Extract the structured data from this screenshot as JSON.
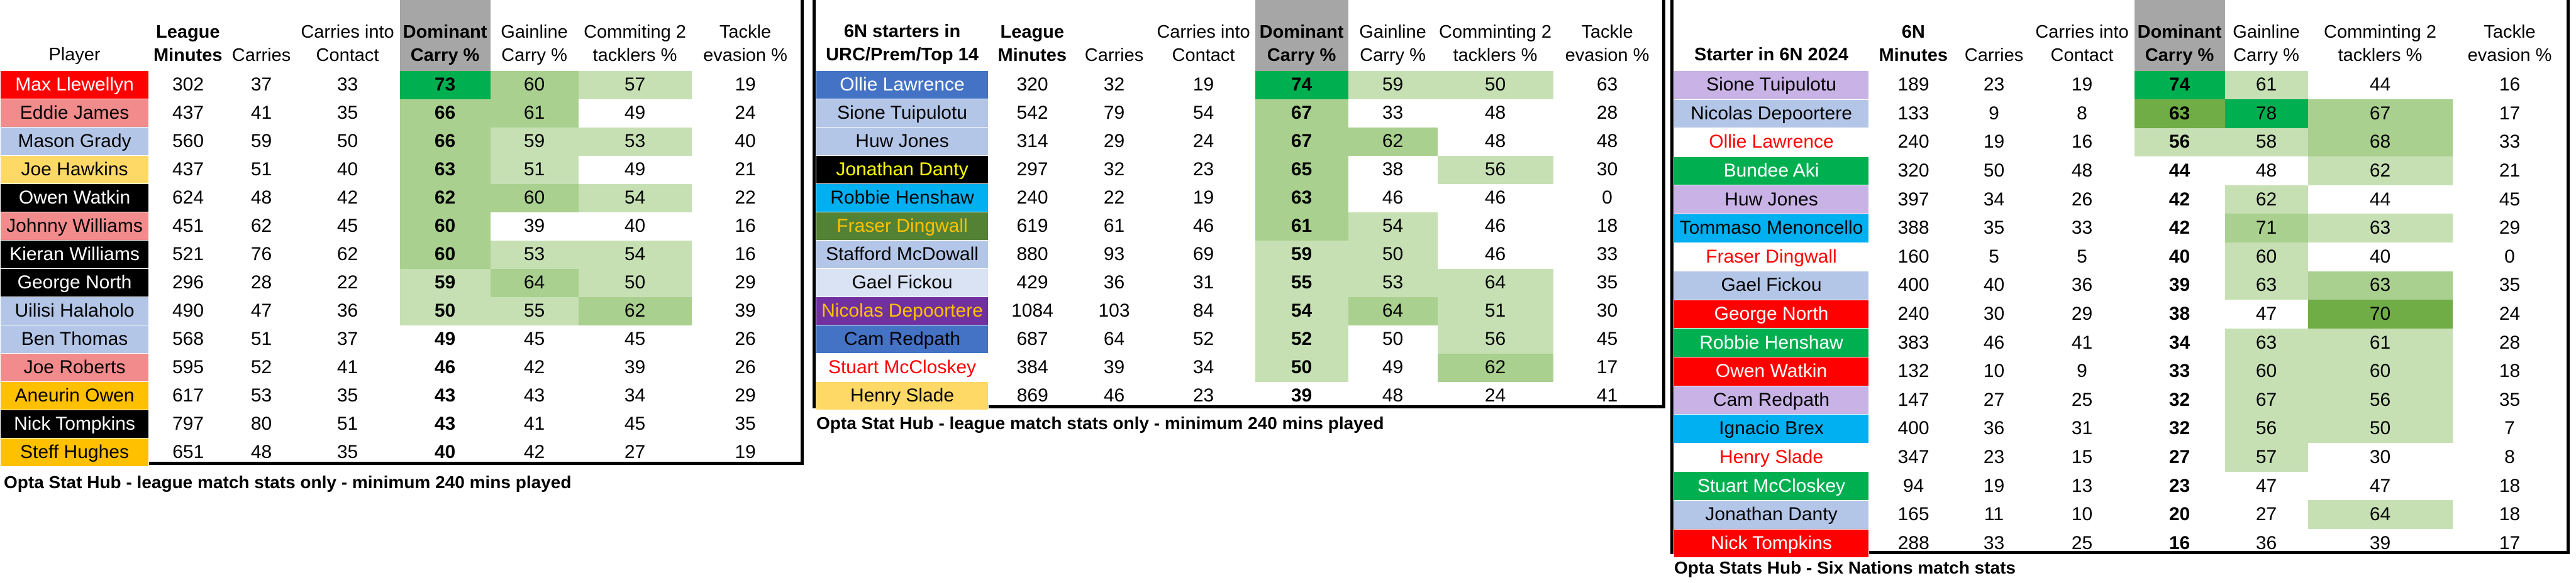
{
  "colors": {
    "light_green": "#c6e0b4",
    "mid_green": "#a9d08e",
    "strong_green": "#70ad47",
    "bright_green": "#00b050",
    "header_grey": "#a6a6a6"
  },
  "table1": {
    "headers": [
      "Player",
      "League Minutes",
      "Carries",
      "Carries into Contact",
      "Dominant Carry %",
      "Gainline Carry %",
      "Commiting 2 tacklers %",
      "Tackle evasion %"
    ],
    "caption": "Opta Stat Hub - league match stats only - minimum 240 mins played",
    "rows": [
      {
        "name": "Max Llewellyn",
        "bg": "#ff0000",
        "fg": "#ffffff",
        "v": [
          "302",
          "37",
          "33",
          "73",
          "60",
          "57",
          "19"
        ],
        "s": [
          0,
          0,
          0,
          4,
          2,
          1,
          0
        ]
      },
      {
        "name": "Eddie James",
        "bg": "#f28b8b",
        "fg": "#000000",
        "v": [
          "437",
          "41",
          "35",
          "66",
          "61",
          "49",
          "24"
        ],
        "s": [
          0,
          0,
          0,
          2,
          2,
          0,
          0
        ]
      },
      {
        "name": "Mason Grady",
        "bg": "#b4c6e7",
        "fg": "#000000",
        "v": [
          "560",
          "59",
          "50",
          "66",
          "59",
          "53",
          "40"
        ],
        "s": [
          0,
          0,
          0,
          2,
          1,
          1,
          0
        ]
      },
      {
        "name": "Joe Hawkins",
        "bg": "#ffd966",
        "fg": "#000000",
        "v": [
          "437",
          "51",
          "40",
          "63",
          "51",
          "49",
          "21"
        ],
        "s": [
          0,
          0,
          0,
          2,
          1,
          0,
          0
        ]
      },
      {
        "name": "Owen Watkin",
        "bg": "#000000",
        "fg": "#ffffff",
        "v": [
          "624",
          "48",
          "42",
          "62",
          "60",
          "54",
          "22"
        ],
        "s": [
          0,
          0,
          0,
          2,
          2,
          1,
          0
        ]
      },
      {
        "name": "Johnny Williams",
        "bg": "#f28b8b",
        "fg": "#000000",
        "v": [
          "451",
          "62",
          "45",
          "60",
          "39",
          "40",
          "16"
        ],
        "s": [
          0,
          0,
          0,
          2,
          0,
          0,
          0
        ]
      },
      {
        "name": "Kieran Williams",
        "bg": "#000000",
        "fg": "#ffffff",
        "v": [
          "521",
          "76",
          "62",
          "60",
          "53",
          "54",
          "16"
        ],
        "s": [
          0,
          0,
          0,
          2,
          1,
          1,
          0
        ]
      },
      {
        "name": "George North",
        "bg": "#000000",
        "fg": "#ffffff",
        "v": [
          "296",
          "28",
          "22",
          "59",
          "64",
          "50",
          "29"
        ],
        "s": [
          0,
          0,
          0,
          1,
          2,
          1,
          0
        ]
      },
      {
        "name": "Uilisi Halaholo",
        "bg": "#b4c6e7",
        "fg": "#000000",
        "v": [
          "490",
          "47",
          "36",
          "50",
          "55",
          "62",
          "39"
        ],
        "s": [
          0,
          0,
          0,
          1,
          1,
          2,
          0
        ]
      },
      {
        "name": "Ben Thomas",
        "bg": "#b4c6e7",
        "fg": "#000000",
        "v": [
          "568",
          "51",
          "37",
          "49",
          "45",
          "45",
          "26"
        ],
        "s": [
          0,
          0,
          0,
          0,
          0,
          0,
          0
        ]
      },
      {
        "name": "Joe Roberts",
        "bg": "#f28b8b",
        "fg": "#000000",
        "v": [
          "595",
          "52",
          "41",
          "46",
          "42",
          "39",
          "26"
        ],
        "s": [
          0,
          0,
          0,
          0,
          0,
          0,
          0
        ]
      },
      {
        "name": "Aneurin Owen",
        "bg": "#ffc000",
        "fg": "#000000",
        "v": [
          "617",
          "53",
          "35",
          "43",
          "43",
          "34",
          "29"
        ],
        "s": [
          0,
          0,
          0,
          0,
          0,
          0,
          0
        ]
      },
      {
        "name": "Nick Tompkins",
        "bg": "#000000",
        "fg": "#ffffff",
        "v": [
          "797",
          "80",
          "51",
          "43",
          "41",
          "45",
          "35"
        ],
        "s": [
          0,
          0,
          0,
          0,
          0,
          0,
          0
        ]
      },
      {
        "name": "Steff Hughes",
        "bg": "#ffc000",
        "fg": "#000000",
        "v": [
          "651",
          "48",
          "35",
          "40",
          "42",
          "27",
          "19"
        ],
        "s": [
          0,
          0,
          0,
          0,
          0,
          0,
          0
        ]
      }
    ]
  },
  "table2": {
    "headers": [
      "6N starters in URC/Prem/Top 14",
      "League Minutes",
      "Carries",
      "Carries into Contact",
      "Dominant Carry %",
      "Gainline Carry %",
      "Comminting 2 tacklers %",
      "Tackle evasion %"
    ],
    "caption": "Opta Stat Hub - league match stats only - minimum 240 mins played",
    "rows": [
      {
        "name": "Ollie Lawrence",
        "bg": "#4472c4",
        "fg": "#ffffff",
        "v": [
          "320",
          "32",
          "19",
          "74",
          "59",
          "50",
          "63"
        ],
        "s": [
          0,
          0,
          0,
          4,
          1,
          1,
          0
        ]
      },
      {
        "name": "Sione Tuipulotu",
        "bg": "#b4c6e7",
        "fg": "#000000",
        "v": [
          "542",
          "79",
          "54",
          "67",
          "33",
          "48",
          "28"
        ],
        "s": [
          0,
          0,
          0,
          2,
          0,
          0,
          0
        ]
      },
      {
        "name": "Huw Jones",
        "bg": "#b4c6e7",
        "fg": "#000000",
        "v": [
          "314",
          "29",
          "24",
          "67",
          "62",
          "48",
          "48"
        ],
        "s": [
          0,
          0,
          0,
          2,
          2,
          0,
          0
        ]
      },
      {
        "name": "Jonathan Danty",
        "bg": "#000000",
        "fg": "#ffff00",
        "v": [
          "297",
          "32",
          "23",
          "65",
          "38",
          "56",
          "30"
        ],
        "s": [
          0,
          0,
          0,
          2,
          0,
          1,
          0
        ]
      },
      {
        "name": "Robbie Henshaw",
        "bg": "#00b0f0",
        "fg": "#000000",
        "v": [
          "240",
          "22",
          "19",
          "63",
          "46",
          "46",
          "0"
        ],
        "s": [
          0,
          0,
          0,
          2,
          0,
          0,
          0
        ]
      },
      {
        "name": "Fraser Dingwall",
        "bg": "#548235",
        "fg": "#ffc000",
        "v": [
          "619",
          "61",
          "46",
          "61",
          "54",
          "46",
          "18"
        ],
        "s": [
          0,
          0,
          0,
          2,
          1,
          0,
          0
        ]
      },
      {
        "name": "Stafford McDowall",
        "bg": "#b4c6e7",
        "fg": "#000000",
        "v": [
          "880",
          "93",
          "69",
          "59",
          "50",
          "46",
          "33"
        ],
        "s": [
          0,
          0,
          0,
          1,
          1,
          0,
          0
        ]
      },
      {
        "name": "Gael Fickou",
        "bg": "#dae3f3",
        "fg": "#000000",
        "v": [
          "429",
          "36",
          "31",
          "55",
          "53",
          "64",
          "35"
        ],
        "s": [
          0,
          0,
          0,
          1,
          1,
          1,
          0
        ]
      },
      {
        "name": "Nicolas Depoortere",
        "bg": "#7030a0",
        "fg": "#ffc000",
        "v": [
          "1084",
          "103",
          "84",
          "54",
          "64",
          "51",
          "30"
        ],
        "s": [
          0,
          0,
          0,
          1,
          2,
          1,
          0
        ]
      },
      {
        "name": "Cam Redpath",
        "bg": "#4472c4",
        "fg": "#000000",
        "v": [
          "687",
          "64",
          "52",
          "52",
          "50",
          "56",
          "45"
        ],
        "s": [
          0,
          0,
          0,
          1,
          0,
          1,
          0
        ]
      },
      {
        "name": "Stuart McCloskey",
        "bg": "#ffffff",
        "fg": "#ff0000",
        "v": [
          "384",
          "39",
          "34",
          "50",
          "49",
          "62",
          "17"
        ],
        "s": [
          0,
          0,
          0,
          1,
          0,
          2,
          0
        ]
      },
      {
        "name": "Henry Slade",
        "bg": "#ffd966",
        "fg": "#000000",
        "v": [
          "869",
          "46",
          "23",
          "39",
          "48",
          "24",
          "41"
        ],
        "s": [
          0,
          0,
          0,
          0,
          0,
          0,
          0
        ]
      }
    ]
  },
  "table3": {
    "headers": [
      "Starter in 6N 2024",
      "6N Minutes",
      "Carries",
      "Carries into Contact",
      "Dominant Carry %",
      "Gainline Carry %",
      "Comminting 2 tacklers %",
      "Tackle evasion %"
    ],
    "caption": "Opta Stats Hub - Six Nations match stats",
    "rows": [
      {
        "name": "Sione Tuipulotu",
        "bg": "#c9b3e6",
        "fg": "#000000",
        "v": [
          "189",
          "23",
          "19",
          "74",
          "61",
          "44",
          "16"
        ],
        "s": [
          0,
          0,
          0,
          4,
          1,
          0,
          0
        ]
      },
      {
        "name": "Nicolas Depoortere",
        "bg": "#b4c6e7",
        "fg": "#000000",
        "v": [
          "133",
          "9",
          "8",
          "63",
          "78",
          "67",
          "17"
        ],
        "s": [
          0,
          0,
          0,
          3,
          4,
          2,
          0
        ]
      },
      {
        "name": "Ollie Lawrence",
        "bg": "#ffffff",
        "fg": "#ff0000",
        "v": [
          "240",
          "19",
          "16",
          "56",
          "58",
          "68",
          "33"
        ],
        "s": [
          0,
          0,
          0,
          1,
          1,
          2,
          0
        ]
      },
      {
        "name": "Bundee Aki",
        "bg": "#00b050",
        "fg": "#ffffff",
        "v": [
          "320",
          "50",
          "48",
          "44",
          "48",
          "62",
          "21"
        ],
        "s": [
          0,
          0,
          0,
          0,
          0,
          1,
          0
        ]
      },
      {
        "name": "Huw Jones",
        "bg": "#c9b3e6",
        "fg": "#000000",
        "v": [
          "397",
          "34",
          "26",
          "42",
          "62",
          "44",
          "45"
        ],
        "s": [
          0,
          0,
          0,
          0,
          1,
          0,
          0
        ]
      },
      {
        "name": "Tommaso Menoncello",
        "bg": "#00b0f0",
        "fg": "#000000",
        "v": [
          "388",
          "35",
          "33",
          "42",
          "71",
          "63",
          "29"
        ],
        "s": [
          0,
          0,
          0,
          0,
          2,
          1,
          0
        ]
      },
      {
        "name": "Fraser Dingwall",
        "bg": "#ffffff",
        "fg": "#ff0000",
        "v": [
          "160",
          "5",
          "5",
          "40",
          "60",
          "40",
          "0"
        ],
        "s": [
          0,
          0,
          0,
          0,
          1,
          0,
          0
        ]
      },
      {
        "name": "Gael Fickou",
        "bg": "#b4c6e7",
        "fg": "#000000",
        "v": [
          "400",
          "40",
          "36",
          "39",
          "63",
          "63",
          "35"
        ],
        "s": [
          0,
          0,
          0,
          0,
          1,
          2,
          0
        ]
      },
      {
        "name": "George North",
        "bg": "#ff0000",
        "fg": "#ffffff",
        "v": [
          "240",
          "30",
          "29",
          "38",
          "47",
          "70",
          "24"
        ],
        "s": [
          0,
          0,
          0,
          0,
          0,
          3,
          0
        ]
      },
      {
        "name": "Robbie Henshaw",
        "bg": "#00b050",
        "fg": "#ffffff",
        "v": [
          "383",
          "46",
          "41",
          "34",
          "63",
          "61",
          "28"
        ],
        "s": [
          0,
          0,
          0,
          0,
          1,
          1,
          0
        ]
      },
      {
        "name": "Owen Watkin",
        "bg": "#ff0000",
        "fg": "#ffffff",
        "v": [
          "132",
          "10",
          "9",
          "33",
          "60",
          "60",
          "18"
        ],
        "s": [
          0,
          0,
          0,
          0,
          1,
          1,
          0
        ]
      },
      {
        "name": "Cam Redpath",
        "bg": "#c9b3e6",
        "fg": "#000000",
        "v": [
          "147",
          "27",
          "25",
          "32",
          "67",
          "56",
          "35"
        ],
        "s": [
          0,
          0,
          0,
          0,
          1,
          1,
          0
        ]
      },
      {
        "name": "Ignacio Brex",
        "bg": "#00b0f0",
        "fg": "#000000",
        "v": [
          "400",
          "36",
          "31",
          "32",
          "56",
          "50",
          "7"
        ],
        "s": [
          0,
          0,
          0,
          0,
          1,
          1,
          0
        ]
      },
      {
        "name": "Henry Slade",
        "bg": "#ffffff",
        "fg": "#ff0000",
        "v": [
          "347",
          "23",
          "15",
          "27",
          "57",
          "30",
          "8"
        ],
        "s": [
          0,
          0,
          0,
          0,
          1,
          0,
          0
        ]
      },
      {
        "name": "Stuart McCloskey",
        "bg": "#00b050",
        "fg": "#ffffff",
        "v": [
          "94",
          "19",
          "13",
          "23",
          "47",
          "47",
          "18"
        ],
        "s": [
          0,
          0,
          0,
          0,
          0,
          0,
          0
        ]
      },
      {
        "name": "Jonathan Danty",
        "bg": "#b4c6e7",
        "fg": "#000000",
        "v": [
          "165",
          "11",
          "10",
          "20",
          "27",
          "64",
          "18"
        ],
        "s": [
          0,
          0,
          0,
          0,
          0,
          1,
          0
        ]
      },
      {
        "name": "Nick Tompkins",
        "bg": "#ff0000",
        "fg": "#ffffff",
        "v": [
          "288",
          "33",
          "25",
          "16",
          "36",
          "39",
          "17"
        ],
        "s": [
          0,
          0,
          0,
          0,
          0,
          0,
          0
        ]
      }
    ]
  }
}
